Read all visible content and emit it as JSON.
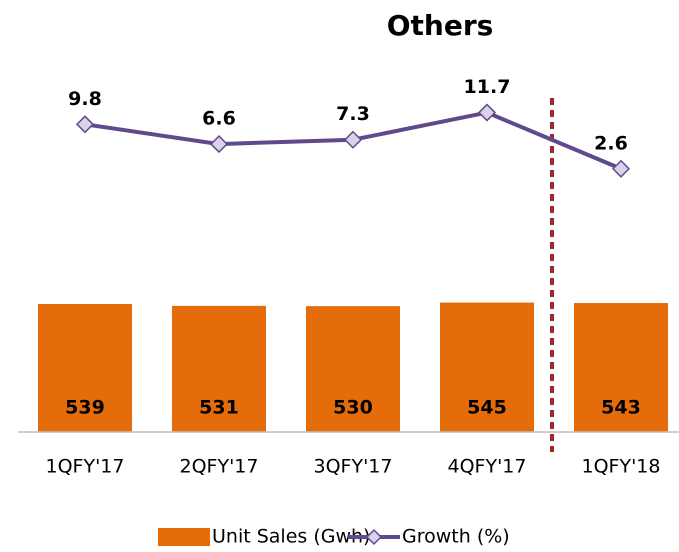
{
  "chart_data": {
    "type": "bar",
    "title": "Others",
    "categories": [
      "1QFY'17",
      "2QFY'17",
      "3QFY'17",
      "4QFY'17",
      "1QFY'18"
    ],
    "series": [
      {
        "name": "Unit Sales (Gwh)",
        "type": "bar",
        "color": "#e46c0a",
        "values": [
          539,
          531,
          530,
          545,
          543
        ]
      },
      {
        "name": "Growth (%)",
        "type": "line",
        "axis": "y2",
        "color": "#5f4a8b",
        "values": [
          9.8,
          6.6,
          7.3,
          11.7,
          2.6
        ]
      }
    ],
    "ylim": [
      0,
      1600
    ],
    "y2lim": [
      -40,
      21.5
    ],
    "grid": false
  }
}
